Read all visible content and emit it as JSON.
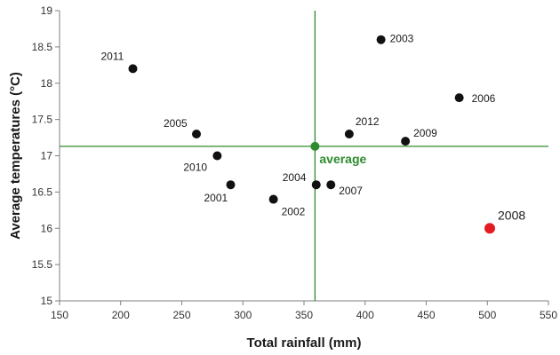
{
  "chart_data": {
    "type": "scatter",
    "title": "",
    "xlabel": "Total rainfall (mm)",
    "ylabel": "Average temperatures (°C)",
    "xlim": [
      150,
      550
    ],
    "ylim": [
      15,
      19
    ],
    "x_ticks": [
      "150",
      "200",
      "250",
      "300",
      "350",
      "400",
      "450",
      "500",
      "550"
    ],
    "y_ticks": [
      "15",
      "15.5",
      "16",
      "16.5",
      "17",
      "17.5",
      "18",
      "18.5",
      "19"
    ],
    "grid": false,
    "points": [
      {
        "label": "2001",
        "x": 290,
        "y": 16.6,
        "highlight": false
      },
      {
        "label": "2002",
        "x": 325,
        "y": 16.4,
        "highlight": false
      },
      {
        "label": "2003",
        "x": 413,
        "y": 18.6,
        "highlight": false
      },
      {
        "label": "2004",
        "x": 360,
        "y": 16.6,
        "highlight": false
      },
      {
        "label": "2005",
        "x": 262,
        "y": 17.3,
        "highlight": false
      },
      {
        "label": "2006",
        "x": 477,
        "y": 17.8,
        "highlight": false
      },
      {
        "label": "2007",
        "x": 372,
        "y": 16.6,
        "highlight": false
      },
      {
        "label": "2008",
        "x": 502,
        "y": 16.0,
        "highlight": true
      },
      {
        "label": "2009",
        "x": 433,
        "y": 17.2,
        "highlight": false
      },
      {
        "label": "2010",
        "x": 279,
        "y": 17.0,
        "highlight": false
      },
      {
        "label": "2011",
        "x": 210,
        "y": 18.2,
        "highlight": false
      },
      {
        "label": "2012",
        "x": 387,
        "y": 17.3,
        "highlight": false
      }
    ],
    "average": {
      "label": "average",
      "x": 359,
      "y": 17.13
    },
    "colors": {
      "point": "#111111",
      "highlight": "#e31b23",
      "average": "#2e8b2e",
      "axis": "#7f7f7f"
    }
  }
}
